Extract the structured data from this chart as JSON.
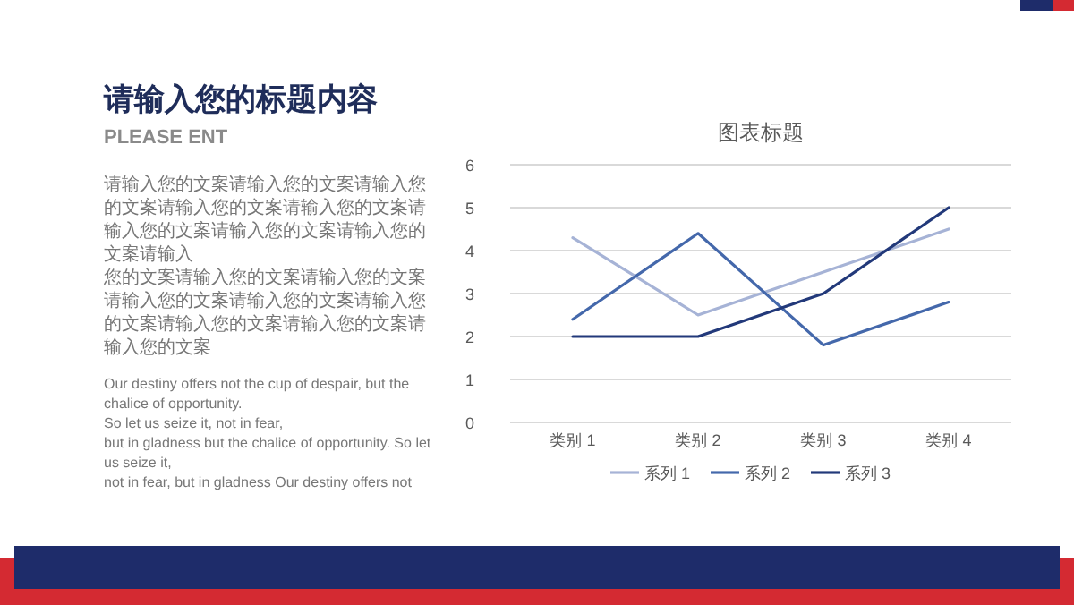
{
  "chart_data": {
    "type": "line",
    "title": "图表标题",
    "categories": [
      "类别 1",
      "类别 2",
      "类别 3",
      "类别 4"
    ],
    "series": [
      {
        "name": "系列 1",
        "color": "#a6b3d6",
        "values": [
          4.3,
          2.5,
          3.5,
          4.5
        ]
      },
      {
        "name": "系列 2",
        "color": "#4468ab",
        "values": [
          2.4,
          4.4,
          1.8,
          2.8
        ]
      },
      {
        "name": "系列 3",
        "color": "#22397a",
        "values": [
          2,
          2,
          3,
          5
        ]
      }
    ],
    "ylim": [
      0,
      6
    ],
    "yticks": [
      0,
      1,
      2,
      3,
      4,
      5,
      6
    ],
    "grid": "y",
    "legend": "bottom",
    "annotations": [
      "请输入您的标题内容",
      "PLEASE ENT",
      "请输入您的文案请输入您的文案请输入您的文案请输入您的文案请输入您的文案请输入您的文案请输入您的文案请输入您的文案请输入",
      "您的文案请输入您的文案请输入您的文案请输入您的文案请输入您的文案请输入您的文案请输入您的文案请输入您的文案请输入您的文案",
      "Our destiny offers not the cup of despair, but the chalice of opportunity.",
      "So let us seize it, not in fear,",
      "but in gladness but the chalice of opportunity. So let us seize it,",
      " not in fear, but in gladness Our destiny offers not"
    ]
  }
}
